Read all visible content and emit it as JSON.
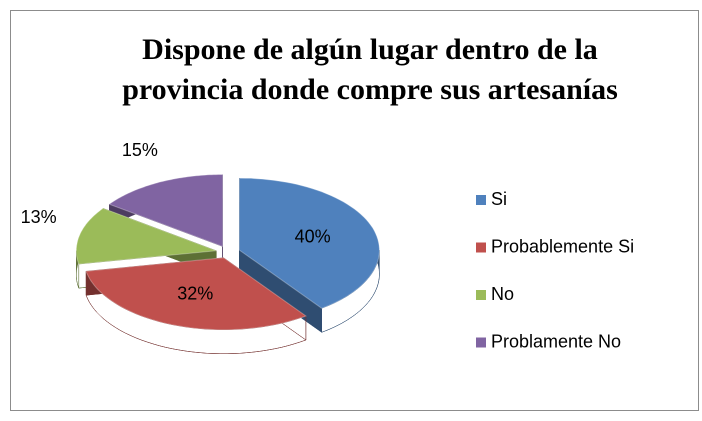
{
  "chart_data": {
    "type": "pie3d",
    "title": "Dispone de algún lugar dentro de la provincia donde compre sus artesanías",
    "categories": [
      "Si",
      "Probablemente Si",
      "No",
      "Problamente No"
    ],
    "values": [
      40,
      32,
      13,
      15
    ],
    "value_labels": [
      "40%",
      "32%",
      "13%",
      "15%"
    ],
    "colors": [
      "#4f81bd",
      "#c0504d",
      "#9bbb59",
      "#8064a2"
    ],
    "legend": "right"
  }
}
